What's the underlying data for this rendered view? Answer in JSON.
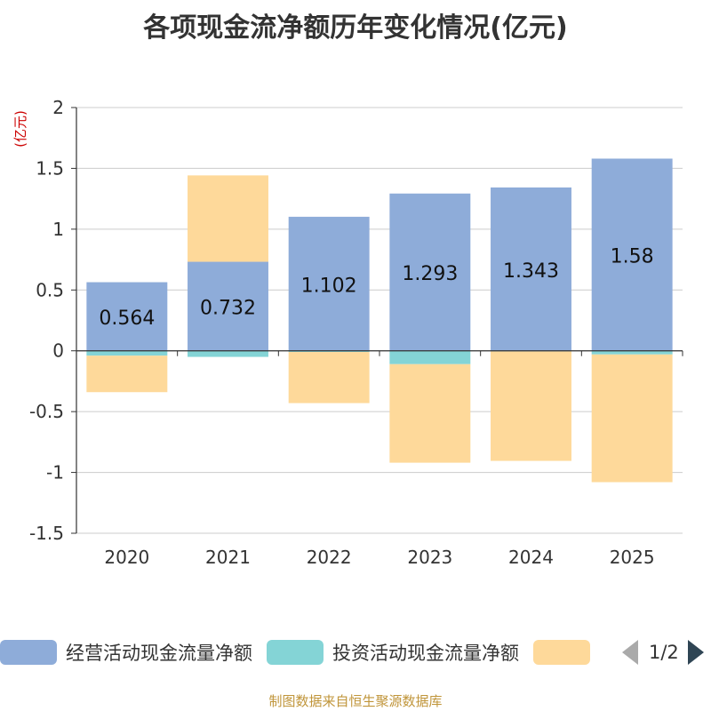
{
  "source_note": "制图数据来自恒生聚源数据库",
  "legend_page": "1/2",
  "chart_data": {
    "type": "bar",
    "stacked": true,
    "title": "各项现金流净额历年变化情况(亿元)",
    "ylabel": "(亿元)",
    "xlabel": "",
    "ylim": [
      -1.5,
      2
    ],
    "yticks": [
      2,
      1.5,
      1,
      0.5,
      0,
      -0.5,
      -1,
      -1.5
    ],
    "ytick_labels": [
      "2",
      "1.5",
      "1",
      "0.5",
      "0",
      "-0.5",
      "-1",
      "-1.5"
    ],
    "grid": true,
    "categories": [
      "2020",
      "2021",
      "2022",
      "2023",
      "2024",
      "2025"
    ],
    "series": [
      {
        "name": "经营活动现金流量净额",
        "color": "#8eacd9",
        "values": [
          0.564,
          0.732,
          1.102,
          1.293,
          1.343,
          1.58
        ],
        "labels": [
          "0.564",
          "0.732",
          "1.102",
          "1.293",
          "1.343",
          "1.58"
        ]
      },
      {
        "name": "投资活动现金流量净额",
        "color": "#84d4d6",
        "values": [
          -0.04,
          -0.05,
          -0.01,
          -0.11,
          -0.005,
          -0.03
        ]
      },
      {
        "name": "",
        "color": "#fed99a",
        "values": [
          -0.3,
          0.71,
          -0.42,
          -0.81,
          -0.9,
          -1.05
        ]
      }
    ]
  }
}
